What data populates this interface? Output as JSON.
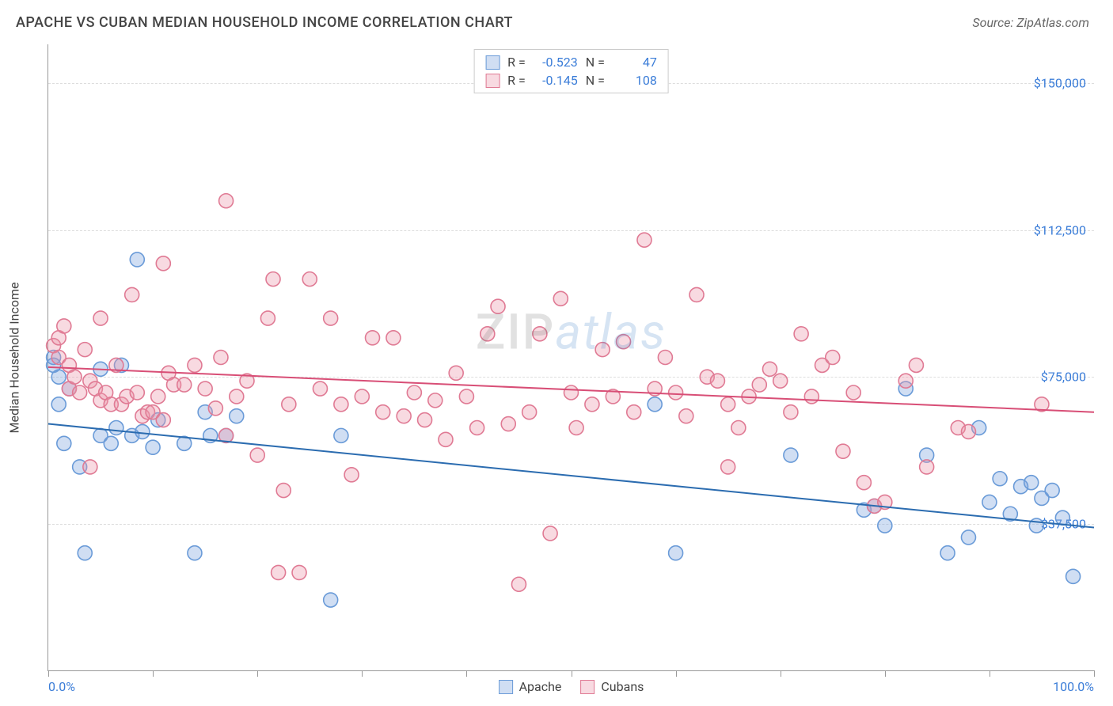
{
  "header": {
    "title": "APACHE VS CUBAN MEDIAN HOUSEHOLD INCOME CORRELATION CHART",
    "source": "Source: ZipAtlas.com"
  },
  "watermark": {
    "part1": "ZIP",
    "part2": "atlas"
  },
  "chart": {
    "type": "scatter",
    "ylabel": "Median Household Income",
    "xlim": [
      0,
      100
    ],
    "ylim": [
      0,
      160000
    ],
    "xticks": [
      0,
      10,
      20,
      30,
      40,
      50,
      60,
      70,
      80,
      90,
      100
    ],
    "xtick_labels": {
      "0": "0.0%",
      "100": "100.0%"
    },
    "yticks": [
      37500,
      75000,
      112500,
      150000
    ],
    "ytick_labels": [
      "$37,500",
      "$75,000",
      "$112,500",
      "$150,000"
    ],
    "grid_color": "#dddddd",
    "axis_color": "#999999",
    "background_color": "#ffffff",
    "tick_label_color": "#3b7dd8",
    "marker_radius": 9,
    "marker_stroke_width": 1.6,
    "trend_line_width": 2,
    "series": [
      {
        "name": "Apache",
        "fill": "rgba(120,160,220,0.35)",
        "stroke": "#6a9bd8",
        "trend_color": "#2b6cb0",
        "R": "-0.523",
        "N": "47",
        "trend": {
          "y_at_x0": 63000,
          "y_at_x100": 36500
        },
        "points": [
          [
            0.5,
            78000
          ],
          [
            0.5,
            80000
          ],
          [
            1,
            75000
          ],
          [
            1,
            68000
          ],
          [
            1.5,
            58000
          ],
          [
            2,
            72000
          ],
          [
            3,
            52000
          ],
          [
            3.5,
            30000
          ],
          [
            5,
            77000
          ],
          [
            5,
            60000
          ],
          [
            6,
            58000
          ],
          [
            6.5,
            62000
          ],
          [
            7,
            78000
          ],
          [
            8,
            60000
          ],
          [
            8.5,
            105000
          ],
          [
            9,
            61000
          ],
          [
            10,
            57000
          ],
          [
            10.5,
            64000
          ],
          [
            13,
            58000
          ],
          [
            14,
            30000
          ],
          [
            15,
            66000
          ],
          [
            15.5,
            60000
          ],
          [
            17,
            60000
          ],
          [
            18,
            65000
          ],
          [
            27,
            18000
          ],
          [
            28,
            60000
          ],
          [
            58,
            68000
          ],
          [
            60,
            30000
          ],
          [
            71,
            55000
          ],
          [
            78,
            41000
          ],
          [
            79,
            42000
          ],
          [
            80,
            37000
          ],
          [
            82,
            72000
          ],
          [
            84,
            55000
          ],
          [
            88,
            34000
          ],
          [
            89,
            62000
          ],
          [
            90,
            43000
          ],
          [
            91,
            49000
          ],
          [
            92,
            40000
          ],
          [
            93,
            47000
          ],
          [
            94,
            48000
          ],
          [
            94.5,
            37000
          ],
          [
            95,
            44000
          ],
          [
            96,
            46000
          ],
          [
            97,
            39000
          ],
          [
            98,
            24000
          ],
          [
            86,
            30000
          ]
        ]
      },
      {
        "name": "Cubans",
        "fill": "rgba(235,150,170,0.35)",
        "stroke": "#e07a94",
        "trend_color": "#d84e76",
        "R": "-0.145",
        "N": "108",
        "trend": {
          "y_at_x0": 77500,
          "y_at_x100": 66000
        },
        "points": [
          [
            0.5,
            83000
          ],
          [
            1,
            85000
          ],
          [
            1,
            80000
          ],
          [
            1.5,
            88000
          ],
          [
            2,
            78000
          ],
          [
            2,
            72000
          ],
          [
            2.5,
            75000
          ],
          [
            3,
            71000
          ],
          [
            3.5,
            82000
          ],
          [
            4,
            74000
          ],
          [
            4,
            52000
          ],
          [
            4.5,
            72000
          ],
          [
            5,
            69000
          ],
          [
            5,
            90000
          ],
          [
            5.5,
            71000
          ],
          [
            6,
            68000
          ],
          [
            6.5,
            78000
          ],
          [
            7,
            68000
          ],
          [
            7.5,
            70000
          ],
          [
            8,
            96000
          ],
          [
            8.5,
            71000
          ],
          [
            9,
            65000
          ],
          [
            9.5,
            66000
          ],
          [
            10,
            66000
          ],
          [
            10.5,
            70000
          ],
          [
            11,
            64000
          ],
          [
            11,
            104000
          ],
          [
            11.5,
            76000
          ],
          [
            12,
            73000
          ],
          [
            13,
            73000
          ],
          [
            14,
            78000
          ],
          [
            15,
            72000
          ],
          [
            16,
            67000
          ],
          [
            16.5,
            80000
          ],
          [
            17,
            60000
          ],
          [
            17,
            120000
          ],
          [
            18,
            70000
          ],
          [
            19,
            74000
          ],
          [
            20,
            55000
          ],
          [
            21,
            90000
          ],
          [
            21.5,
            100000
          ],
          [
            22,
            25000
          ],
          [
            22.5,
            46000
          ],
          [
            23,
            68000
          ],
          [
            24,
            25000
          ],
          [
            25,
            100000
          ],
          [
            26,
            72000
          ],
          [
            27,
            90000
          ],
          [
            28,
            68000
          ],
          [
            29,
            50000
          ],
          [
            30,
            70000
          ],
          [
            31,
            85000
          ],
          [
            32,
            66000
          ],
          [
            33,
            85000
          ],
          [
            34,
            65000
          ],
          [
            35,
            71000
          ],
          [
            36,
            64000
          ],
          [
            37,
            69000
          ],
          [
            38,
            59000
          ],
          [
            39,
            76000
          ],
          [
            40,
            70000
          ],
          [
            41,
            62000
          ],
          [
            42,
            86000
          ],
          [
            43,
            93000
          ],
          [
            44,
            63000
          ],
          [
            45,
            22000
          ],
          [
            46,
            66000
          ],
          [
            47,
            86000
          ],
          [
            48,
            35000
          ],
          [
            49,
            95000
          ],
          [
            50,
            71000
          ],
          [
            50.5,
            62000
          ],
          [
            52,
            68000
          ],
          [
            53,
            82000
          ],
          [
            54,
            70000
          ],
          [
            55,
            84000
          ],
          [
            56,
            66000
          ],
          [
            57,
            110000
          ],
          [
            58,
            72000
          ],
          [
            59,
            80000
          ],
          [
            60,
            71000
          ],
          [
            61,
            65000
          ],
          [
            62,
            96000
          ],
          [
            63,
            75000
          ],
          [
            64,
            74000
          ],
          [
            65,
            68000
          ],
          [
            66,
            62000
          ],
          [
            67,
            70000
          ],
          [
            68,
            73000
          ],
          [
            69,
            77000
          ],
          [
            70,
            74000
          ],
          [
            71,
            66000
          ],
          [
            72,
            86000
          ],
          [
            73,
            70000
          ],
          [
            74,
            78000
          ],
          [
            75,
            80000
          ],
          [
            76,
            56000
          ],
          [
            77,
            71000
          ],
          [
            78,
            48000
          ],
          [
            79,
            42000
          ],
          [
            80,
            43000
          ],
          [
            82,
            74000
          ],
          [
            83,
            78000
          ],
          [
            84,
            52000
          ],
          [
            87,
            62000
          ],
          [
            88,
            61000
          ],
          [
            95,
            68000
          ],
          [
            65,
            52000
          ]
        ]
      }
    ]
  },
  "legend": {
    "stats_header": [
      "R =",
      "N ="
    ]
  }
}
